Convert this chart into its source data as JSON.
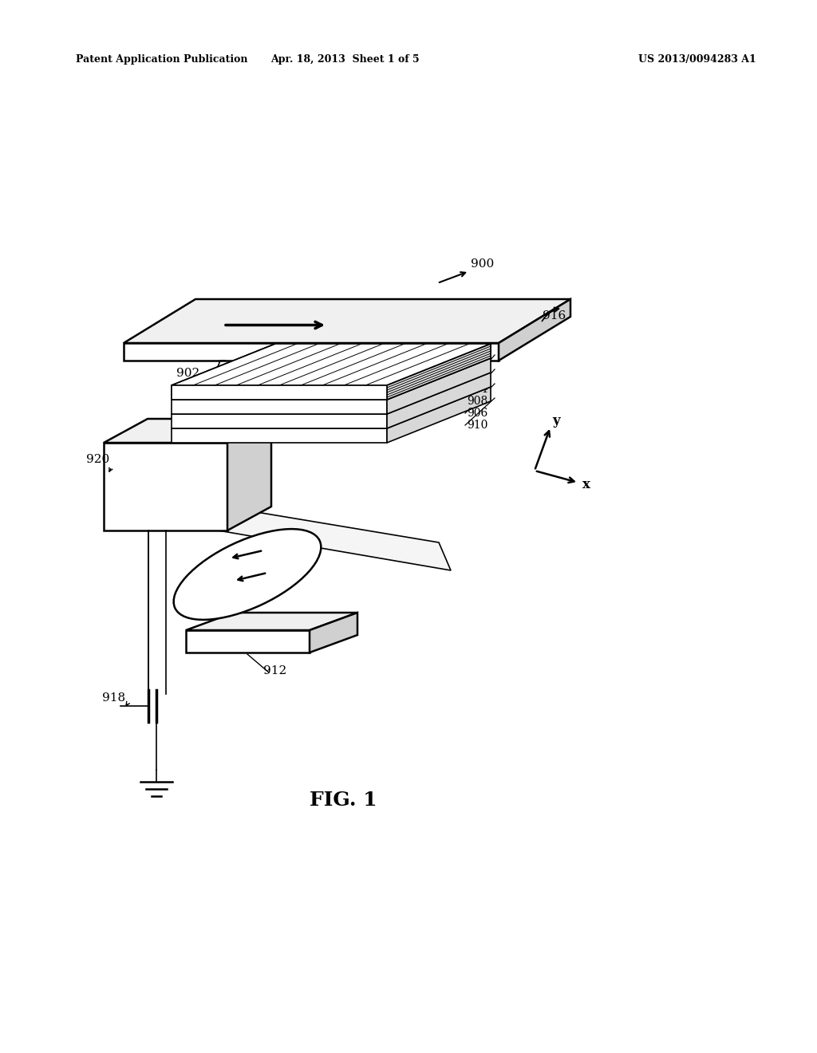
{
  "bg_color": "#ffffff",
  "line_color": "#000000",
  "header_left": "Patent Application Publication",
  "header_mid": "Apr. 18, 2013  Sheet 1 of 5",
  "header_right": "US 2013/0094283 A1",
  "fig_label": "FIG. 1"
}
